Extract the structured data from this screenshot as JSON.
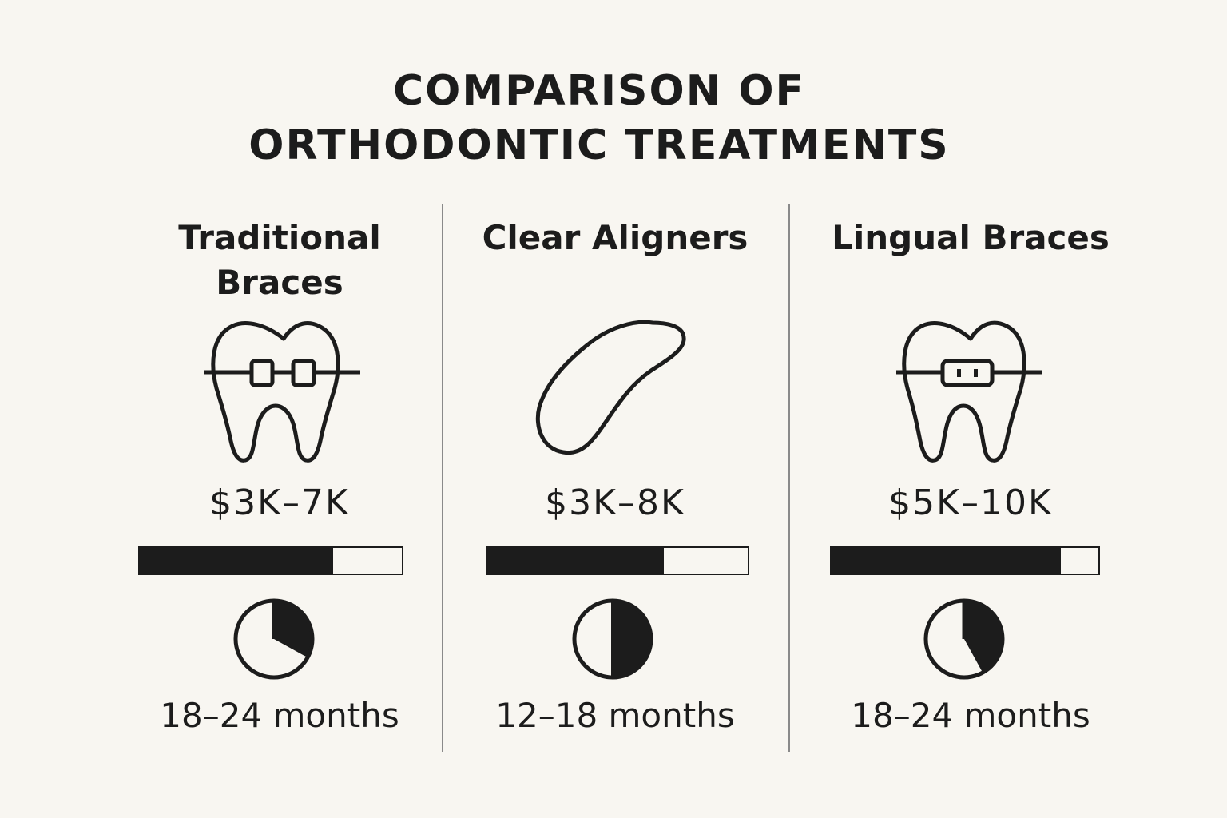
{
  "title": {
    "line1": "COMPARISON OF",
    "line2": "ORTHODONTIC TREATMENTS"
  },
  "treatments": [
    {
      "name_line1": "Traditional",
      "name_line2": "Braces",
      "icon": "tooth-with-brackets-icon",
      "cost": "$3K–7K",
      "cost_bar_fraction": 0.74,
      "duration": "18–24 months",
      "duration_clock_fraction": 0.33
    },
    {
      "name_line1": "Clear Aligners",
      "name_line2": "",
      "icon": "aligner-tray-icon",
      "cost": "$3K–8K",
      "cost_bar_fraction": 0.68,
      "duration": "12–18 months",
      "duration_clock_fraction": 0.5
    },
    {
      "name_line1": "Lingual Braces",
      "name_line2": "",
      "icon": "tooth-with-lingual-bracket-icon",
      "cost": "$5K–10K",
      "cost_bar_fraction": 0.86,
      "duration": "18–24 months",
      "duration_clock_fraction": 0.42
    }
  ],
  "colors": {
    "background": "#f8f6f1",
    "ink": "#1c1c1c",
    "divider": "#8a8a8a"
  }
}
